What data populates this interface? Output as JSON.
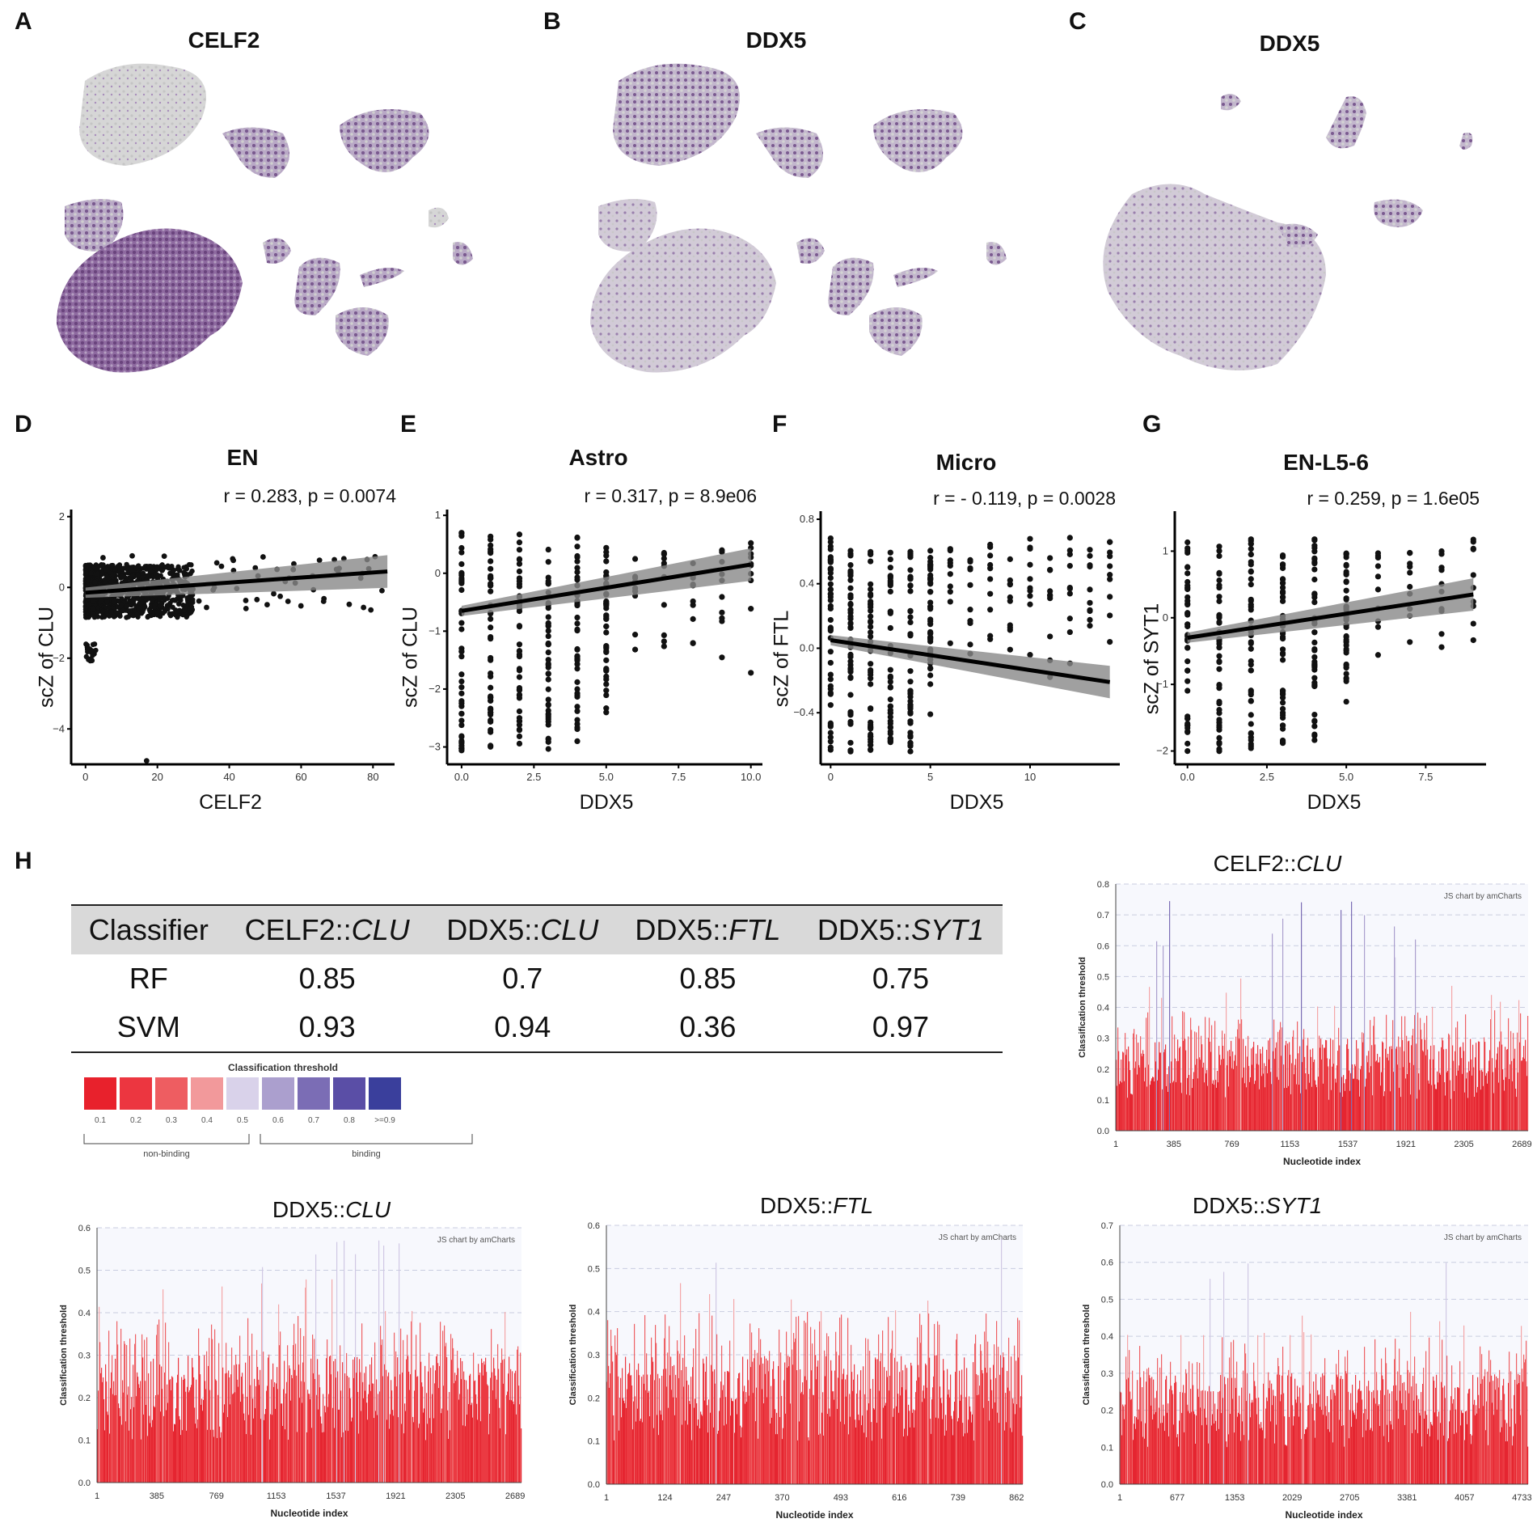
{
  "panels_top": [
    {
      "letter": "A",
      "title": "CELF2"
    },
    {
      "letter": "B",
      "title": "DDX5"
    },
    {
      "letter": "C",
      "title": "DDX5"
    }
  ],
  "chart_data": [
    {
      "id": "D",
      "type": "scatter",
      "title": "EN",
      "stat": "r = 0.283, p = 0.0074",
      "xlabel": "CELF2",
      "ylabel": "scZ of CLU",
      "xticks": [
        "0",
        "20",
        "40",
        "60",
        "80"
      ],
      "yticks": [
        "2",
        "0",
        "−2",
        "−4"
      ],
      "xlim": [
        -4,
        86
      ],
      "ylim": [
        -5,
        2.2
      ],
      "fit": {
        "x0": 0,
        "y0": -0.15,
        "x1": 84,
        "y1": 0.45
      }
    },
    {
      "id": "E",
      "type": "scatter",
      "title": "Astro",
      "stat": "r = 0.317, p = 8.9e06",
      "xlabel": "DDX5",
      "ylabel": "scZ of CLU",
      "xticks": [
        "0.0",
        "2.5",
        "5.0",
        "7.5",
        "10.0"
      ],
      "yticks": [
        "1",
        "0",
        "−1",
        "−2",
        "−3"
      ],
      "xlim": [
        -0.5,
        10.4
      ],
      "ylim": [
        -3.3,
        1.1
      ],
      "fit": {
        "x0": 0,
        "y0": -0.65,
        "x1": 10,
        "y1": 0.15
      }
    },
    {
      "id": "F",
      "type": "scatter",
      "title": "Micro",
      "stat": "r = - 0.119, p = 0.0028",
      "xlabel": "DDX5",
      "ylabel": "scZ of FTL",
      "xticks": [
        "0",
        "5",
        "10"
      ],
      "yticks": [
        "0.8",
        "0.4",
        "0.0",
        "−0.4"
      ],
      "xlim": [
        -0.5,
        14.5
      ],
      "ylim": [
        -0.72,
        0.85
      ],
      "fit": {
        "x0": 0,
        "y0": 0.05,
        "x1": 14,
        "y1": -0.21
      }
    },
    {
      "id": "G",
      "type": "scatter",
      "title": "EN-L5-6",
      "stat": "r = 0.259, p = 1.6e05",
      "xlabel": "DDX5",
      "ylabel": "scZ of SYT1",
      "xticks": [
        "0.0",
        "2.5",
        "5.0",
        "7.5"
      ],
      "yticks": [
        "1",
        "0",
        "−1",
        "−2"
      ],
      "xlim": [
        -0.4,
        9.4
      ],
      "ylim": [
        -2.2,
        1.6
      ],
      "fit": {
        "x0": 0,
        "y0": -0.3,
        "x1": 9,
        "y1": 0.35
      }
    }
  ],
  "panel_letters_scatter": [
    "D",
    "E",
    "F",
    "G"
  ],
  "panel_H": {
    "letter": "H",
    "table": {
      "header": [
        "Classifier",
        "CELF2::",
        "CLU",
        "DDX5::",
        "CLU",
        "DDX5::",
        "FTL",
        "DDX5::",
        "SYT1"
      ],
      "rows": [
        [
          "RF",
          "0.85",
          "0.7",
          "0.85",
          "0.75"
        ],
        [
          "SVM",
          "0.93",
          "0.94",
          "0.36",
          "0.97"
        ]
      ]
    },
    "legend": {
      "title": "Classification threshold",
      "colors": [
        "#e8212c",
        "#ec3640",
        "#ee5d61",
        "#f2999b",
        "#d9d2ea",
        "#ab9fce",
        "#7b6db5",
        "#5a4ea6",
        "#3a3f9c"
      ],
      "labels": [
        "0.1",
        "0.2",
        "0.3",
        "0.4",
        "0.5",
        "0.6",
        "0.7",
        "0.8",
        ">=0.9"
      ],
      "groups": [
        "non-binding",
        "binding"
      ]
    },
    "bar_charts": [
      {
        "gene": "CELF2::",
        "transcript": "CLU",
        "credit": "JS chart by amCharts",
        "ylabel": "Classification threshold",
        "xlabel": "Nucleotide index",
        "yticks": [
          "0.8",
          "0.7",
          "0.6",
          "0.5",
          "0.4",
          "0.3",
          "0.2",
          "0.1",
          "0.0"
        ],
        "xticks": [
          "1",
          "385",
          "769",
          "1153",
          "1537",
          "1921",
          "2305",
          "2689"
        ],
        "ymax": 0.8
      },
      {
        "gene": "DDX5::",
        "transcript": "CLU",
        "credit": "JS chart by amCharts",
        "ylabel": "Classification threshold",
        "xlabel": "Nucleotide index",
        "yticks": [
          "0.6",
          "0.5",
          "0.4",
          "0.3",
          "0.2",
          "0.1",
          "0.0"
        ],
        "xticks": [
          "1",
          "385",
          "769",
          "1153",
          "1537",
          "1921",
          "2305",
          "2689"
        ],
        "ymax": 0.6
      },
      {
        "gene": "DDX5::",
        "transcript": "FTL",
        "credit": "JS chart by amCharts",
        "ylabel": "Classification threshold",
        "xlabel": "Nucleotide index",
        "yticks": [
          "0.6",
          "0.5",
          "0.4",
          "0.3",
          "0.2",
          "0.1",
          "0.0"
        ],
        "xticks": [
          "1",
          "124",
          "247",
          "370",
          "493",
          "616",
          "739",
          "862"
        ],
        "ymax": 0.6
      },
      {
        "gene": "DDX5::",
        "transcript": "SYT1",
        "credit": "JS chart by amCharts",
        "ylabel": "Classification threshold",
        "xlabel": "Nucleotide index",
        "yticks": [
          "0.7",
          "0.6",
          "0.5",
          "0.4",
          "0.3",
          "0.2",
          "0.1",
          "0.0"
        ],
        "xticks": [
          "1",
          "677",
          "1353",
          "2029",
          "2705",
          "3381",
          "4057",
          "4733"
        ],
        "ymax": 0.7
      }
    ]
  }
}
